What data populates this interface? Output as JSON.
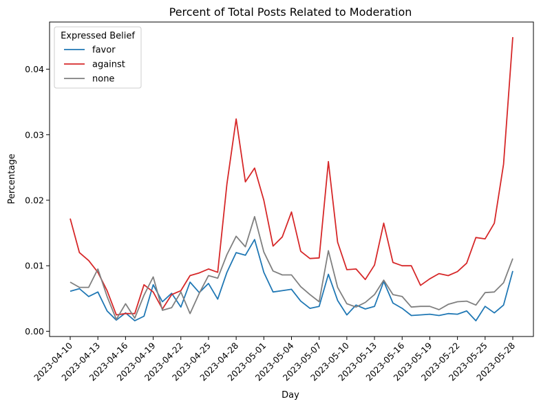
{
  "chart_data": {
    "type": "line",
    "title": "Percent of Total Posts Related to Moderation",
    "xlabel": "Day",
    "ylabel": "Percentage",
    "ylim": [
      -0.0008,
      0.0472
    ],
    "yticks": [
      0.0,
      0.01,
      0.02,
      0.03,
      0.04
    ],
    "ytick_labels": [
      "0.00",
      "0.01",
      "0.02",
      "0.03",
      "0.04"
    ],
    "xticks": [
      "2023-04-10",
      "2023-04-13",
      "2023-04-16",
      "2023-04-19",
      "2023-04-22",
      "2023-04-25",
      "2023-04-28",
      "2023-05-01",
      "2023-05-04",
      "2023-05-07",
      "2023-05-10",
      "2023-05-13",
      "2023-05-16",
      "2023-05-19",
      "2023-05-22",
      "2023-05-25",
      "2023-05-28"
    ],
    "x": [
      "2023-04-10",
      "2023-04-11",
      "2023-04-12",
      "2023-04-13",
      "2023-04-14",
      "2023-04-15",
      "2023-04-16",
      "2023-04-17",
      "2023-04-18",
      "2023-04-19",
      "2023-04-20",
      "2023-04-21",
      "2023-04-22",
      "2023-04-23",
      "2023-04-24",
      "2023-04-25",
      "2023-04-26",
      "2023-04-27",
      "2023-04-28",
      "2023-04-29",
      "2023-04-30",
      "2023-05-01",
      "2023-05-02",
      "2023-05-03",
      "2023-05-04",
      "2023-05-05",
      "2023-05-06",
      "2023-05-07",
      "2023-05-08",
      "2023-05-09",
      "2023-05-10",
      "2023-05-11",
      "2023-05-12",
      "2023-05-13",
      "2023-05-14",
      "2023-05-15",
      "2023-05-16",
      "2023-05-17",
      "2023-05-18",
      "2023-05-19",
      "2023-05-20",
      "2023-05-21",
      "2023-05-22",
      "2023-05-23",
      "2023-05-24",
      "2023-05-25",
      "2023-05-26",
      "2023-05-27",
      "2023-05-28"
    ],
    "legend": {
      "title": "Expressed Belief",
      "placement": "upper-left"
    },
    "grid": false,
    "series": [
      {
        "name": "favor",
        "color": "#1f77b4",
        "values": [
          0.0061,
          0.0065,
          0.0053,
          0.006,
          0.0031,
          0.0017,
          0.0028,
          0.0016,
          0.0023,
          0.0071,
          0.0045,
          0.0058,
          0.0037,
          0.0075,
          0.0059,
          0.0073,
          0.0049,
          0.009,
          0.012,
          0.0116,
          0.014,
          0.009,
          0.006,
          0.0062,
          0.0064,
          0.0046,
          0.0035,
          0.0038,
          0.0087,
          0.0047,
          0.0025,
          0.004,
          0.0034,
          0.0038,
          0.0076,
          0.0043,
          0.0035,
          0.0024,
          0.0025,
          0.0026,
          0.0024,
          0.0027,
          0.0026,
          0.0031,
          0.0016,
          0.0038,
          0.0028,
          0.004,
          0.0092
        ]
      },
      {
        "name": "against",
        "color": "#d62728",
        "values": [
          0.0172,
          0.012,
          0.0108,
          0.009,
          0.0062,
          0.0025,
          0.0027,
          0.0027,
          0.0071,
          0.006,
          0.0034,
          0.0056,
          0.0062,
          0.0085,
          0.0089,
          0.0095,
          0.009,
          0.0225,
          0.0324,
          0.0228,
          0.0249,
          0.02,
          0.013,
          0.0144,
          0.0182,
          0.0122,
          0.0111,
          0.0112,
          0.0259,
          0.0136,
          0.0094,
          0.0095,
          0.0079,
          0.0101,
          0.0165,
          0.0105,
          0.01,
          0.01,
          0.007,
          0.008,
          0.0088,
          0.0085,
          0.0091,
          0.0104,
          0.0143,
          0.0141,
          0.0165,
          0.0255,
          0.0449
        ]
      },
      {
        "name": "none",
        "color": "#7f7f7f",
        "values": [
          0.0075,
          0.0067,
          0.0067,
          0.0095,
          0.0053,
          0.0018,
          0.0042,
          0.002,
          0.0055,
          0.0083,
          0.0032,
          0.0036,
          0.006,
          0.0027,
          0.0058,
          0.0085,
          0.0081,
          0.0117,
          0.0145,
          0.0129,
          0.0175,
          0.0121,
          0.0092,
          0.0086,
          0.0086,
          0.0068,
          0.0056,
          0.0045,
          0.0123,
          0.0067,
          0.0042,
          0.0037,
          0.0044,
          0.0056,
          0.0078,
          0.0056,
          0.0053,
          0.0037,
          0.0038,
          0.0038,
          0.0033,
          0.0041,
          0.0045,
          0.0046,
          0.004,
          0.0059,
          0.006,
          0.0074,
          0.0111
        ]
      }
    ]
  }
}
